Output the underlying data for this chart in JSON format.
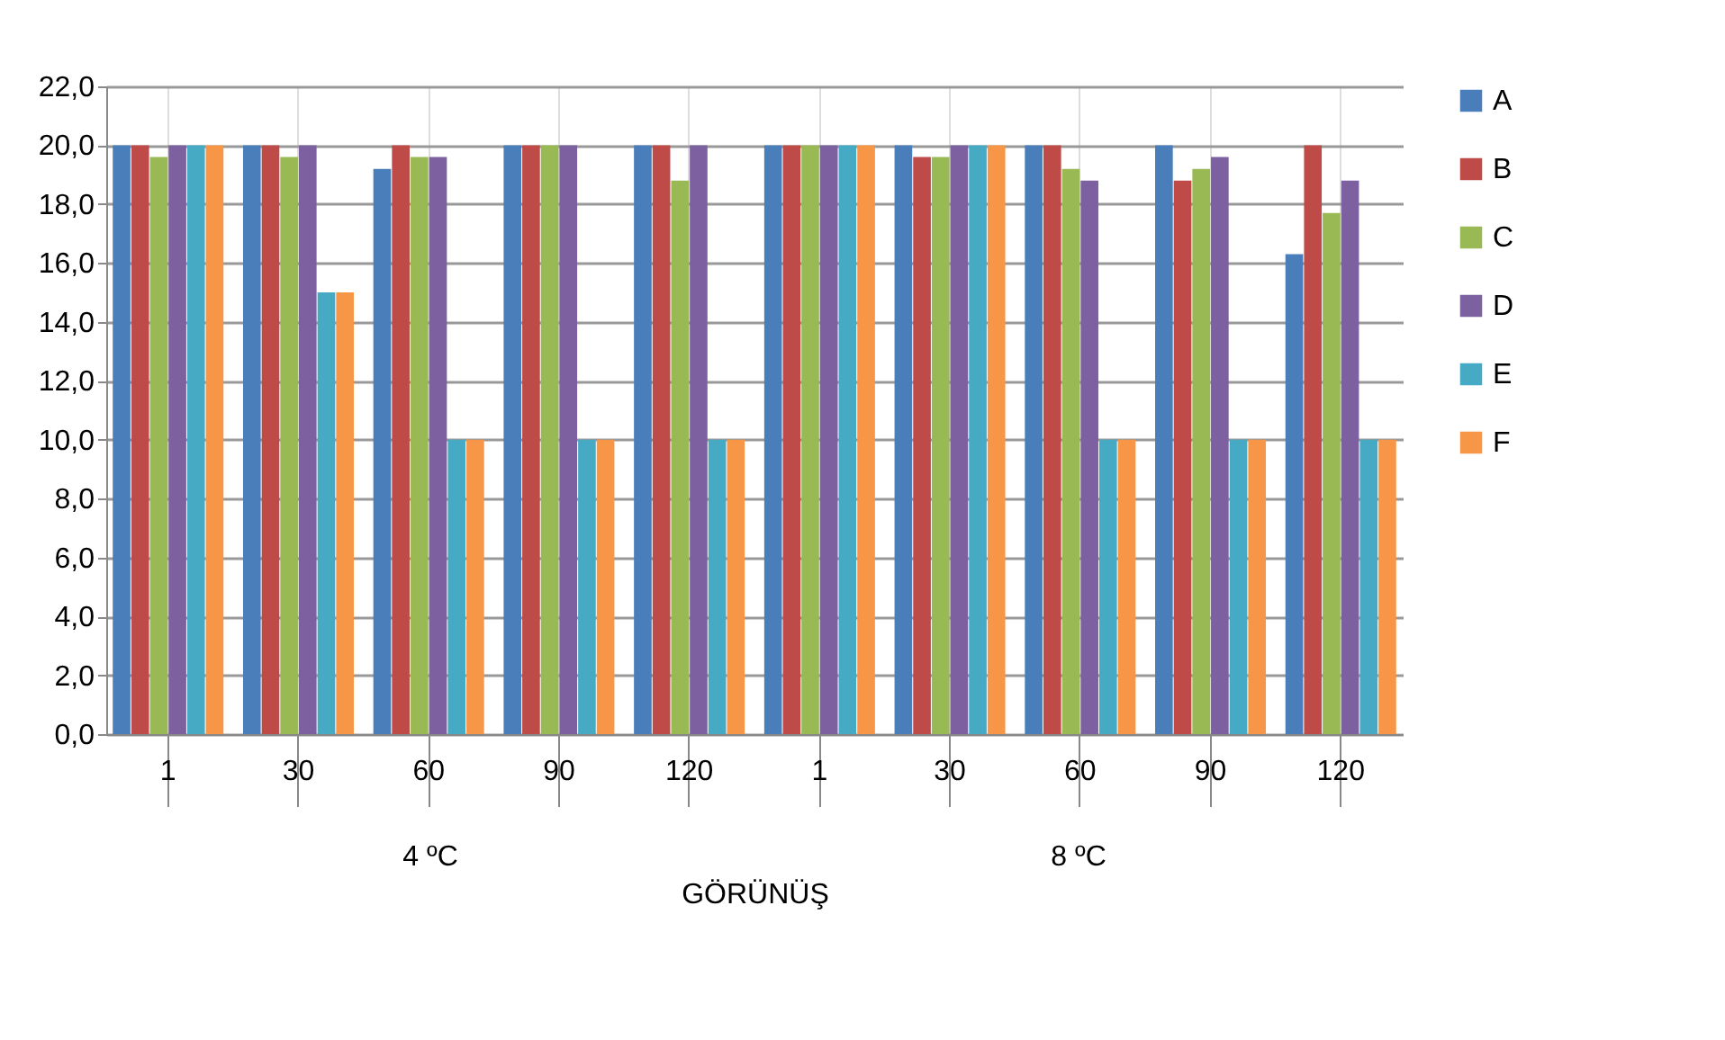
{
  "chart_data": {
    "type": "bar",
    "xlabel": "GÖRÜNÜŞ",
    "categories": [
      "1",
      "30",
      "60",
      "90",
      "120",
      "1",
      "30",
      "60",
      "90",
      "120"
    ],
    "annotations": [
      "4 ºC",
      "8 ºC"
    ],
    "series": [
      {
        "name": "A",
        "color": "#4a7ebb",
        "values": [
          20,
          20,
          19.2,
          20,
          20,
          20,
          20,
          20,
          20,
          16.3
        ]
      },
      {
        "name": "B",
        "color": "#be4b48",
        "values": [
          20,
          20,
          20,
          20,
          20,
          20,
          19.6,
          20,
          18.8,
          20
        ]
      },
      {
        "name": "C",
        "color": "#98b954",
        "values": [
          19.6,
          19.6,
          19.6,
          20,
          18.8,
          20,
          19.6,
          19.2,
          19.2,
          17.7
        ]
      },
      {
        "name": "D",
        "color": "#7d60a0",
        "values": [
          20,
          20,
          19.6,
          20,
          20,
          20,
          20,
          18.8,
          19.6,
          18.8
        ]
      },
      {
        "name": "E",
        "color": "#46aac5",
        "values": [
          20,
          15,
          10,
          10,
          10,
          20,
          20,
          10,
          10,
          10
        ]
      },
      {
        "name": "F",
        "color": "#f79646",
        "values": [
          20,
          15,
          10,
          10,
          10,
          20,
          20,
          10,
          10,
          10
        ]
      }
    ],
    "ylim": [
      0,
      22
    ],
    "yticks": [
      {
        "value": 0,
        "label": "0,0"
      },
      {
        "value": 2,
        "label": "2,0"
      },
      {
        "value": 4,
        "label": "4,0"
      },
      {
        "value": 6,
        "label": "6,0"
      },
      {
        "value": 8,
        "label": "8,0"
      },
      {
        "value": 10,
        "label": "10,0"
      },
      {
        "value": 12,
        "label": "12,0"
      },
      {
        "value": 14,
        "label": "14,0"
      },
      {
        "value": 16,
        "label": "16,0"
      },
      {
        "value": 18,
        "label": "18,0"
      },
      {
        "value": 20,
        "label": "20,0"
      },
      {
        "value": 22,
        "label": "22,0"
      }
    ],
    "grid": true,
    "legend": "right"
  }
}
